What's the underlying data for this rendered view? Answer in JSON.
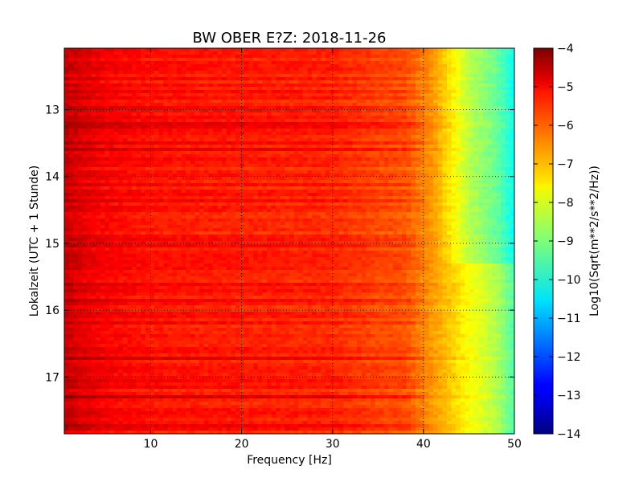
{
  "chart_data": {
    "type": "heatmap",
    "title": "BW OBER E?Z: 2018-11-26",
    "xlabel": "Frequency [Hz]",
    "ylabel": "Lokalzeit (UTC + 1 Stunde)",
    "xlim": [
      0.5,
      50
    ],
    "ylim": [
      12.08,
      17.85
    ],
    "y_inverted": true,
    "x_ticks": [
      10,
      20,
      30,
      40,
      50
    ],
    "y_ticks": [
      13,
      14,
      15,
      16,
      17
    ],
    "grid": true,
    "colorbar": {
      "label": "Log10(Sqrt(m**2/s**2/Hz))",
      "range": [
        -14,
        -4
      ],
      "ticks": [
        -4,
        -5,
        -6,
        -7,
        -8,
        -9,
        -10,
        -11,
        -12,
        -13,
        -14
      ],
      "colormap": "jet"
    },
    "frequency_profile": {
      "x": [
        0.5,
        2,
        5,
        10,
        20,
        30,
        35,
        38,
        40,
        42,
        44,
        46,
        48,
        50
      ],
      "values": [
        -4.7,
        -4.9,
        -5.2,
        -5.4,
        -5.5,
        -5.6,
        -5.9,
        -6.0,
        -6.5,
        -7.0,
        -7.5,
        -8.0,
        -8.5,
        -9.5
      ]
    },
    "features": {
      "noisy_period_end": 15.3,
      "noisy_period_extra_high_freq_dB": -0.7
    }
  }
}
